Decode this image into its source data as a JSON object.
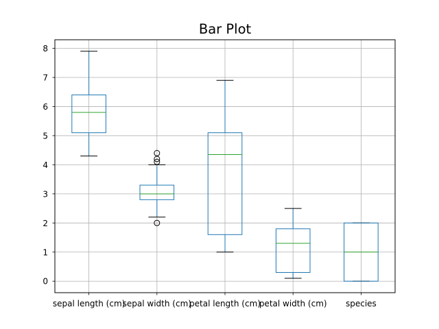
{
  "chart_data": {
    "type": "box",
    "title": "Bar Plot",
    "xlabel": "",
    "ylabel": "",
    "categories": [
      "sepal length (cm)",
      "sepal width (cm)",
      "petal length (cm)",
      "petal width (cm)",
      "species"
    ],
    "boxes": [
      {
        "category": "sepal length (cm)",
        "whisker_low": 4.3,
        "q1": 5.1,
        "median": 5.8,
        "q3": 6.4,
        "whisker_high": 7.9,
        "outliers": []
      },
      {
        "category": "sepal width (cm)",
        "whisker_low": 2.2,
        "q1": 2.8,
        "median": 3.0,
        "q3": 3.3,
        "whisker_high": 4.0,
        "outliers": [
          2.0,
          4.1,
          4.2,
          4.4
        ]
      },
      {
        "category": "petal length (cm)",
        "whisker_low": 1.0,
        "q1": 1.6,
        "median": 4.35,
        "q3": 5.1,
        "whisker_high": 6.9,
        "outliers": []
      },
      {
        "category": "petal width (cm)",
        "whisker_low": 0.1,
        "q1": 0.3,
        "median": 1.3,
        "q3": 1.8,
        "whisker_high": 2.5,
        "outliers": []
      },
      {
        "category": "species",
        "whisker_low": 0.0,
        "q1": 0.0,
        "median": 1.0,
        "q3": 2.0,
        "whisker_high": 2.0,
        "outliers": []
      }
    ],
    "yticks": [
      0,
      1,
      2,
      3,
      4,
      5,
      6,
      7,
      8
    ],
    "ylim": [
      -0.395,
      8.295
    ],
    "grid": true,
    "colors": {
      "box": "#1f77b4",
      "median": "#2ca02c",
      "whisker_cap": "#000000",
      "grid": "#b0b0b0"
    }
  }
}
